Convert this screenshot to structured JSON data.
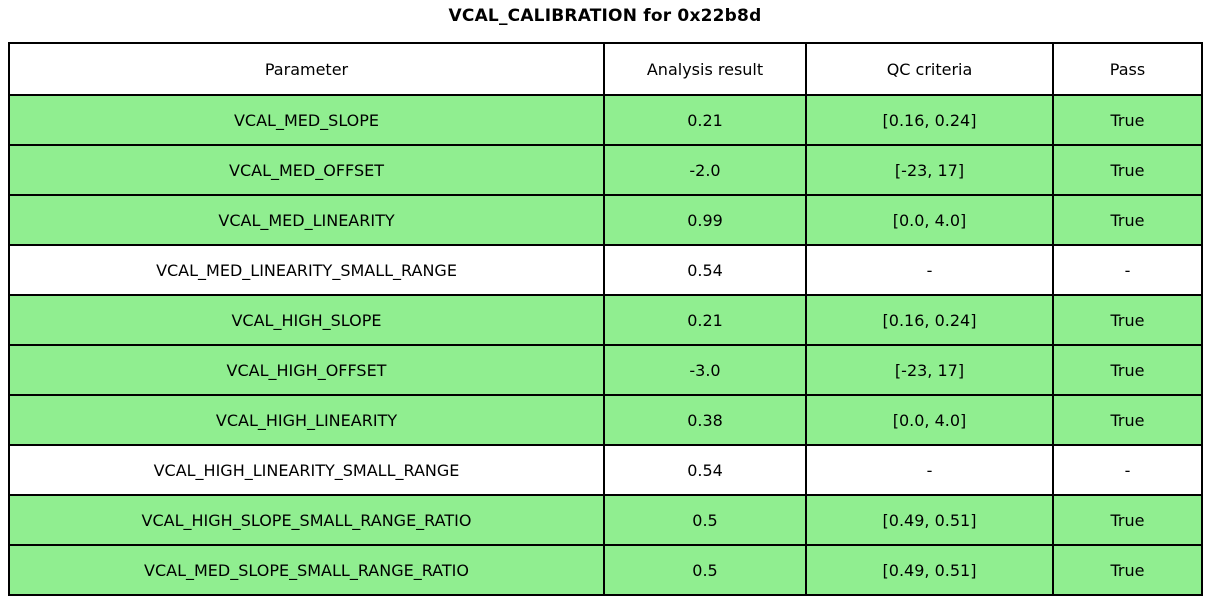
{
  "title": "VCAL_CALIBRATION for 0x22b8d",
  "chart_data": {
    "type": "table",
    "title": "VCAL_CALIBRATION for 0x22b8d",
    "columns": [
      "Parameter",
      "Analysis result",
      "QC criteria",
      "Pass"
    ],
    "rows": [
      {
        "cells": [
          "VCAL_MED_SLOPE",
          "0.21",
          "[0.16, 0.24]",
          "True"
        ],
        "highlighted": true
      },
      {
        "cells": [
          "VCAL_MED_OFFSET",
          "-2.0",
          "[-23, 17]",
          "True"
        ],
        "highlighted": true
      },
      {
        "cells": [
          "VCAL_MED_LINEARITY",
          "0.99",
          "[0.0, 4.0]",
          "True"
        ],
        "highlighted": true
      },
      {
        "cells": [
          "VCAL_MED_LINEARITY_SMALL_RANGE",
          "0.54",
          "-",
          "-"
        ],
        "highlighted": false
      },
      {
        "cells": [
          "VCAL_HIGH_SLOPE",
          "0.21",
          "[0.16, 0.24]",
          "True"
        ],
        "highlighted": true
      },
      {
        "cells": [
          "VCAL_HIGH_OFFSET",
          "-3.0",
          "[-23, 17]",
          "True"
        ],
        "highlighted": true
      },
      {
        "cells": [
          "VCAL_HIGH_LINEARITY",
          "0.38",
          "[0.0, 4.0]",
          "True"
        ],
        "highlighted": true
      },
      {
        "cells": [
          "VCAL_HIGH_LINEARITY_SMALL_RANGE",
          "0.54",
          "-",
          "-"
        ],
        "highlighted": false
      },
      {
        "cells": [
          "VCAL_HIGH_SLOPE_SMALL_RANGE_RATIO",
          "0.5",
          "[0.49, 0.51]",
          "True"
        ],
        "highlighted": true
      },
      {
        "cells": [
          "VCAL_MED_SLOPE_SMALL_RANGE_RATIO",
          "0.5",
          "[0.49, 0.51]",
          "True"
        ],
        "highlighted": true
      }
    ]
  },
  "colors": {
    "pass_row_bg": "#90ee90",
    "default_row_bg": "#ffffff",
    "border": "#000000",
    "text": "#000000"
  }
}
